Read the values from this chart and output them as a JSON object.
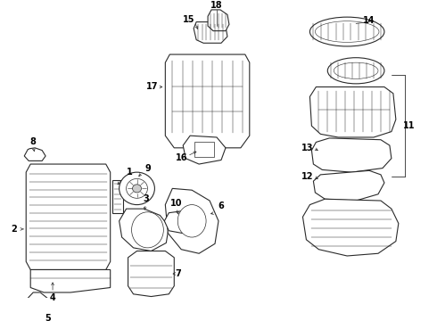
{
  "background_color": "#ffffff",
  "line_color": "#2a2a2a",
  "text_color": "#000000",
  "fig_width": 4.9,
  "fig_height": 3.6,
  "dpi": 100
}
